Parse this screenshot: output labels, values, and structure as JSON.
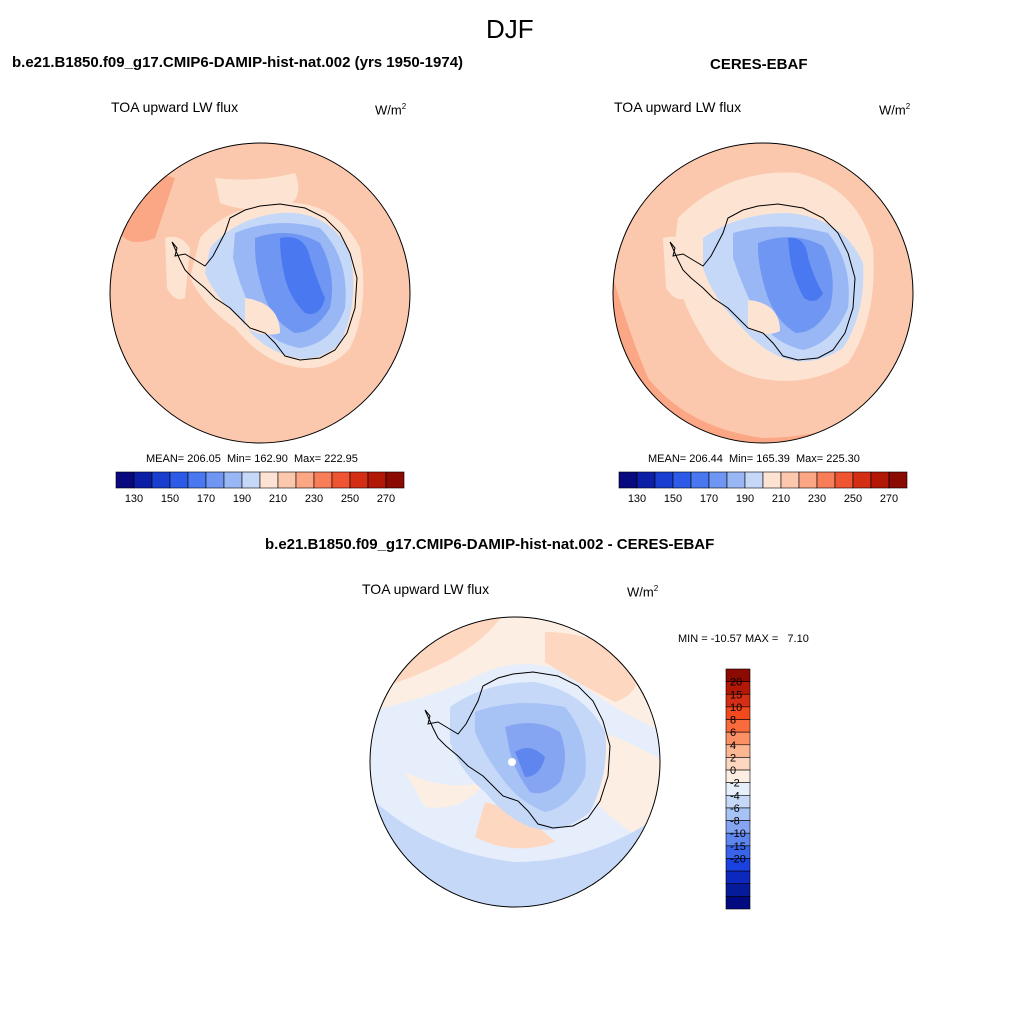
{
  "figure": {
    "season": "DJF",
    "units_base": "W/m",
    "units_exp": "2",
    "variable": "TOA upward LW flux"
  },
  "panels": [
    {
      "title": "b.e21.B1850.f09_g17.CMIP6-DAMIP-hist-nat.002 (yrs 1950-1974)",
      "subtitle": "TOA upward LW flux",
      "stats": "MEAN= 206.05  Min= 162.90  Max= 222.95",
      "mean": 206.05,
      "min": 162.9,
      "max": 222.95
    },
    {
      "title": "CERES-EBAF",
      "subtitle": "TOA upward LW flux",
      "stats": "MEAN= 206.44  Min= 165.39  Max= 225.30",
      "mean": 206.44,
      "min": 165.39,
      "max": 225.3
    },
    {
      "title": "b.e21.B1850.f09_g17.CMIP6-DAMIP-hist-nat.002 - CERES-EBAF",
      "subtitle": "TOA upward LW flux",
      "stats": "MIN = -10.57 MAX =   7.10",
      "min": -10.57,
      "max": 7.1
    }
  ],
  "colorbar_abs": {
    "colors": [
      "#08087f",
      "#0d1fa6",
      "#1a3fd0",
      "#2d5ae8",
      "#4a78f0",
      "#6f96f2",
      "#9ab7f5",
      "#c5d8f8",
      "#fde4d2",
      "#fcc8ad",
      "#fba684",
      "#f77e59",
      "#ef5433",
      "#d42e15",
      "#b31807",
      "#8b0a02"
    ],
    "labels": [
      "130",
      "150",
      "170",
      "190",
      "210",
      "230",
      "250",
      "270"
    ]
  },
  "colorbar_diff": {
    "colors": [
      "#8b0a02",
      "#b31807",
      "#d42e15",
      "#f24a1d",
      "#f96a3d",
      "#fb9066",
      "#fcb692",
      "#fdd7c0",
      "#fdeee3",
      "#e6eefb",
      "#c5d8f8",
      "#a7c2f5",
      "#85a5f2",
      "#5f86ef",
      "#3863ea",
      "#1a42e0",
      "#0c28bd",
      "#061b9a",
      "#020a80"
    ],
    "labels": [
      "20",
      "15",
      "10",
      "8",
      "6",
      "4",
      "2",
      "0",
      "-2",
      "-4",
      "-6",
      "-8",
      "-10",
      "-15",
      "-20"
    ]
  }
}
